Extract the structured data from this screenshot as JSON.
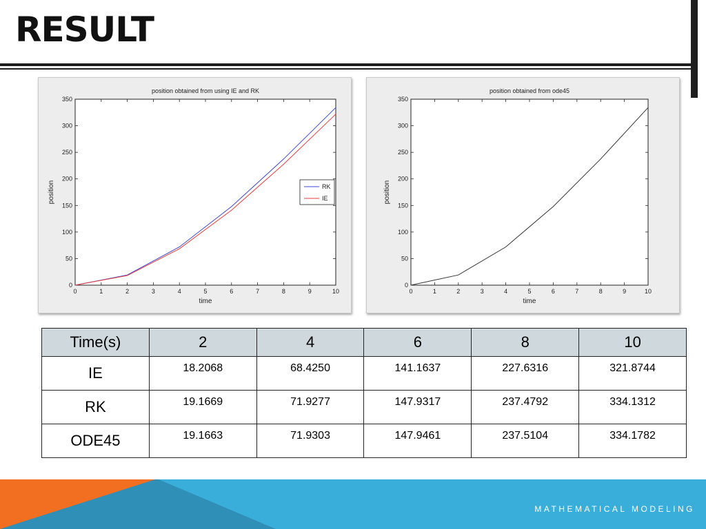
{
  "slide": {
    "title": "RESULT",
    "footer": "MATHEMATICAL MODELING"
  },
  "colors": {
    "rk": "#3b45d6",
    "ie": "#ef3b3b",
    "ode45": "#333333",
    "footer_blue": "#3aaedb",
    "footer_orange": "#f26f21"
  },
  "chart_data": [
    {
      "type": "line",
      "title": "position obtained from using IE and RK",
      "xlabel": "time",
      "ylabel": "position",
      "xlim": [
        0,
        10
      ],
      "ylim": [
        0,
        350
      ],
      "xticks": [
        0,
        1,
        2,
        3,
        4,
        5,
        6,
        7,
        8,
        9,
        10
      ],
      "yticks": [
        0,
        50,
        100,
        150,
        200,
        250,
        300,
        350
      ],
      "legend": "right",
      "grid": false,
      "series": [
        {
          "name": "RK",
          "color": "#3b45d6",
          "x": [
            0,
            2,
            4,
            6,
            8,
            10
          ],
          "y": [
            0,
            19.1669,
            71.9277,
            147.9317,
            237.4792,
            334.1312
          ]
        },
        {
          "name": "IE",
          "color": "#ef3b3b",
          "x": [
            0,
            2,
            4,
            6,
            8,
            10
          ],
          "y": [
            0,
            18.2068,
            68.425,
            141.1637,
            227.6316,
            321.8744
          ]
        }
      ]
    },
    {
      "type": "line",
      "title": "position obtained from ode45",
      "xlabel": "time",
      "ylabel": "position",
      "xlim": [
        0,
        10
      ],
      "ylim": [
        0,
        350
      ],
      "xticks": [
        0,
        1,
        2,
        3,
        4,
        5,
        6,
        7,
        8,
        9,
        10
      ],
      "yticks": [
        0,
        50,
        100,
        150,
        200,
        250,
        300,
        350
      ],
      "grid": false,
      "series": [
        {
          "color": "#333333",
          "x": [
            0,
            2,
            4,
            6,
            8,
            10
          ],
          "y": [
            0,
            19.1663,
            71.9303,
            147.9461,
            237.5104,
            334.1782
          ]
        }
      ]
    }
  ],
  "table": {
    "header": [
      "Time(s)",
      "2",
      "4",
      "6",
      "8",
      "10"
    ],
    "rows": [
      {
        "label": "IE",
        "values": [
          "18.2068",
          "68.4250",
          "141.1637",
          "227.6316",
          "321.8744"
        ]
      },
      {
        "label": "RK",
        "values": [
          "19.1669",
          "71.9277",
          "147.9317",
          "237.4792",
          "334.1312"
        ]
      },
      {
        "label": "ODE45",
        "values": [
          "19.1663",
          "71.9303",
          "147.9461",
          "237.5104",
          "334.1782"
        ]
      }
    ]
  }
}
